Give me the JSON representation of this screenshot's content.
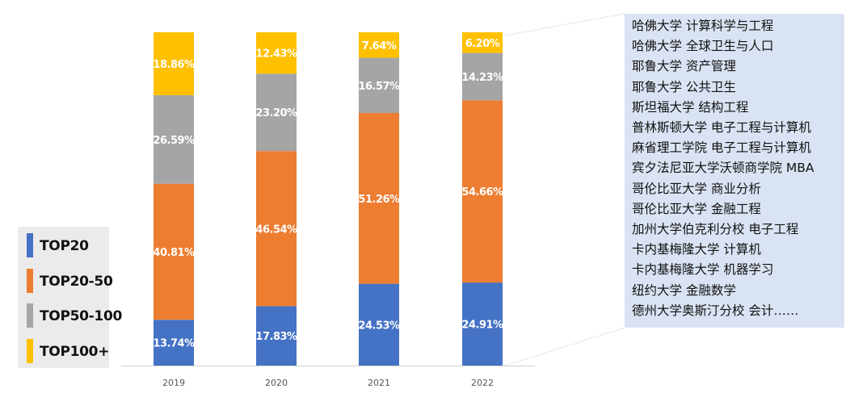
{
  "chart_data": {
    "type": "bar",
    "stacked": true,
    "categories": [
      "2019",
      "2020",
      "2021",
      "2022"
    ],
    "series": [
      {
        "name": "TOP20",
        "color": "#4472c4",
        "values": [
          13.74,
          17.83,
          24.53,
          24.91
        ],
        "labels": [
          "13.74%",
          "17.83%",
          "24.53%",
          "24.91%"
        ]
      },
      {
        "name": "TOP20-50",
        "color": "#ed7d31",
        "values": [
          40.81,
          46.54,
          51.26,
          54.66
        ],
        "labels": [
          "40.81%",
          "46.54%",
          "51.26%",
          "54.66%"
        ]
      },
      {
        "name": "TOP50-100",
        "color": "#a5a5a5",
        "values": [
          26.59,
          23.2,
          16.57,
          14.23
        ],
        "labels": [
          "26.59%",
          "23.20%",
          "16.57%",
          "14.23%"
        ]
      },
      {
        "name": "TOP100+",
        "color": "#ffc000",
        "values": [
          18.86,
          12.43,
          7.64,
          6.2
        ],
        "labels": [
          "18.86%",
          "12.43%",
          "7.64%",
          "6.20%"
        ]
      }
    ],
    "ylim": [
      0,
      100
    ],
    "grid": false,
    "legend_position": "left"
  },
  "info_box": {
    "lines": [
      "哈佛大学 计算科学与工程",
      "哈佛大学 全球卫生与人口",
      "耶鲁大学 资产管理",
      "耶鲁大学 公共卫生",
      "斯坦福大学 结构工程",
      "普林斯顿大学 电子工程与计算机",
      "麻省理工学院 电子工程与计算机",
      "宾夕法尼亚大学沃顿商学院 MBA",
      "哥伦比亚大学 商业分析",
      "哥伦比亚大学 金融工程",
      "加州大学伯克利分校 电子工程",
      "卡内基梅隆大学 计算机",
      "卡内基梅隆大学 机器学习",
      "纽约大学 金融数学",
      "德州大学奥斯汀分校 会计……"
    ]
  }
}
